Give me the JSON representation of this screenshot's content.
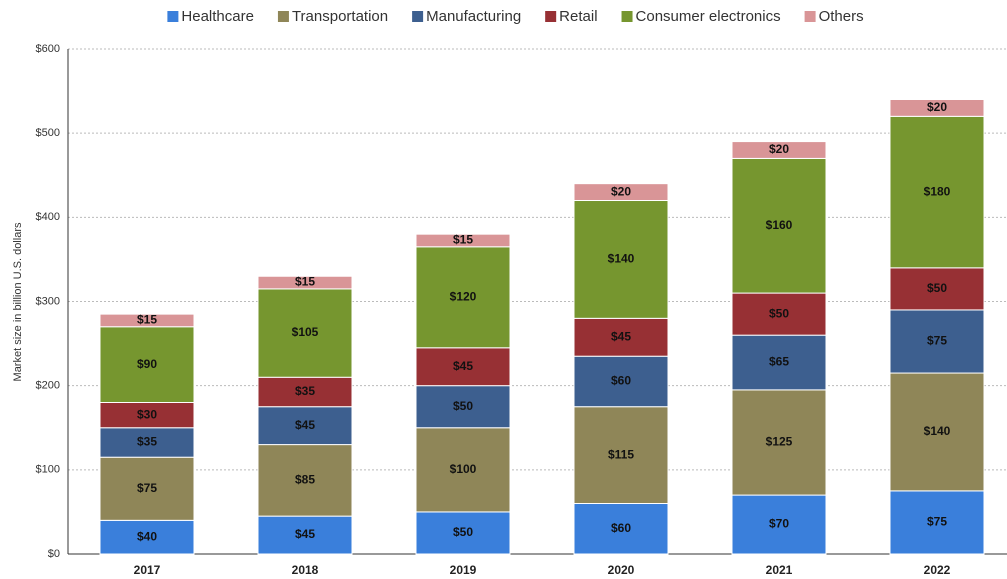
{
  "chart_data": {
    "type": "stacked_bar",
    "y_label": "Market size in billion U.S. dollars",
    "categories": [
      "2017",
      "2018",
      "2019",
      "2020",
      "2021",
      "2022"
    ],
    "series": [
      {
        "name": "Healthcare",
        "color": "#3a7fdb",
        "values": [
          40,
          45,
          50,
          60,
          70,
          75
        ],
        "value_labels": [
          "$40",
          "$45",
          "$50",
          "$60",
          "$70",
          "$75"
        ]
      },
      {
        "name": "Transportation",
        "color": "#8f8658",
        "values": [
          75,
          85,
          100,
          115,
          125,
          140
        ],
        "value_labels": [
          "$75",
          "$85",
          "$100",
          "$115",
          "$125",
          "$140"
        ]
      },
      {
        "name": "Manufacturing",
        "color": "#3d5f8f",
        "values": [
          35,
          45,
          50,
          60,
          65,
          75
        ],
        "value_labels": [
          "$35",
          "$45",
          "$50",
          "$60",
          "$65",
          "$75"
        ]
      },
      {
        "name": "Retail",
        "color": "#973034",
        "values": [
          30,
          35,
          45,
          45,
          50,
          50
        ],
        "value_labels": [
          "$30",
          "$35",
          "$45",
          "$45",
          "$50",
          "$50"
        ]
      },
      {
        "name": "Consumer electronics",
        "color": "#76962f",
        "values": [
          90,
          105,
          120,
          140,
          160,
          180
        ],
        "value_labels": [
          "$90",
          "$105",
          "$120",
          "$140",
          "$160",
          "$180"
        ]
      },
      {
        "name": "Others",
        "color": "#d99597",
        "values": [
          15,
          15,
          15,
          20,
          20,
          20
        ],
        "value_labels": [
          "$15",
          "$15",
          "$15",
          "$20",
          "$20",
          "$20"
        ]
      }
    ],
    "ylim": [
      0,
      600
    ],
    "yticks": [
      {
        "value": 0,
        "label": "$0"
      },
      {
        "value": 100,
        "label": "$100"
      },
      {
        "value": 200,
        "label": "$200"
      },
      {
        "value": 300,
        "label": "$300"
      },
      {
        "value": 400,
        "label": "$400"
      },
      {
        "value": 500,
        "label": "$500"
      },
      {
        "value": 600,
        "label": "$600"
      }
    ],
    "grid": true,
    "legend": "top"
  }
}
